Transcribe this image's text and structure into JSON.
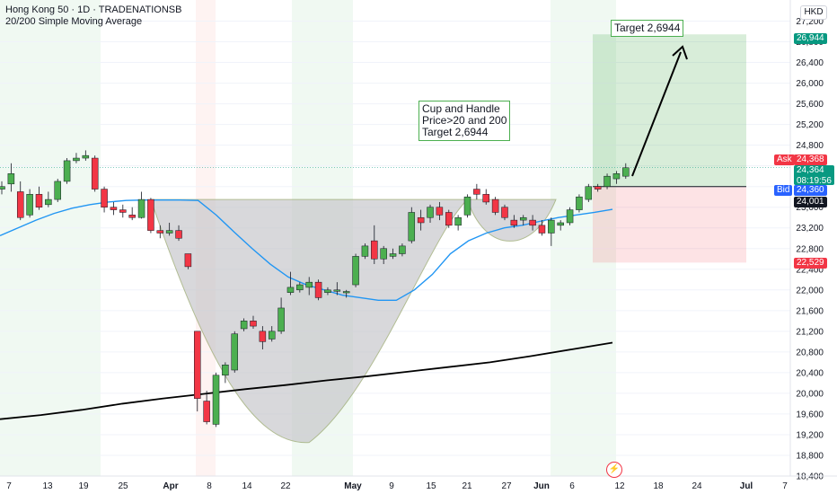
{
  "header": {
    "symbol_line": "Hong Kong 50 · 1D · TRADENATIONSB",
    "indicator_line": "20/200 Simple Moving Average"
  },
  "currency": "HKD",
  "annotations": {
    "cup_lines": [
      "Cup and Handle",
      "Price>20 and 200",
      "Target 2,6944"
    ],
    "target_label": "Target 2,6944"
  },
  "price_tags": {
    "target": {
      "text": "26,944",
      "color": "#089981"
    },
    "ask_label": "Ask",
    "ask": "24,368",
    "ask_color": "#f23645",
    "last": "24,364",
    "countdown": "08:19:56",
    "last_color": "#089981",
    "bid_label": "Bid",
    "bid": "24,360",
    "bid_color": "#2962ff",
    "entry": {
      "text": "24,001",
      "color": "#131722"
    },
    "stop": {
      "text": "22,529",
      "color": "#f23645"
    }
  },
  "colors": {
    "up": "#4caf50",
    "down": "#f23645",
    "ma20": "#2196f3",
    "ma200": "#000000",
    "cup_fill": "#c4c4c8"
  },
  "chart_data": {
    "type": "candlestick",
    "y_ticks": [
      18400,
      18800,
      19200,
      19600,
      20000,
      20400,
      20800,
      21200,
      21600,
      22000,
      22400,
      22800,
      23200,
      23600,
      24000,
      24400,
      24800,
      25200,
      25600,
      26000,
      26400,
      26800,
      27200
    ],
    "y_tick_labels": [
      "18,400",
      "18,800",
      "19,200",
      "19,600",
      "20,000",
      "20,400",
      "20,800",
      "21,200",
      "21,600",
      "22,000",
      "22,400",
      "22,800",
      "23,200",
      "23,600",
      "24,000",
      "24,400",
      "24,800",
      "25,200",
      "25,600",
      "26,000",
      "26,400",
      "26,800",
      "27,200"
    ],
    "ylim": [
      18400,
      27400
    ],
    "x_labels": [
      "7",
      "13",
      "19",
      "25",
      "Apr",
      "8",
      "14",
      "22",
      "May",
      "9",
      "15",
      "21",
      "27",
      "Jun",
      "6",
      "12",
      "18",
      "24",
      "Jul",
      "7"
    ],
    "candles": [
      {
        "o": 23950,
        "h": 24100,
        "l": 23850,
        "c": 24000
      },
      {
        "o": 24050,
        "h": 24450,
        "l": 23900,
        "c": 24250
      },
      {
        "o": 23900,
        "h": 24100,
        "l": 23350,
        "c": 23400
      },
      {
        "o": 23450,
        "h": 23950,
        "l": 23400,
        "c": 23850
      },
      {
        "o": 23850,
        "h": 24000,
        "l": 23550,
        "c": 23600
      },
      {
        "o": 23650,
        "h": 23900,
        "l": 23600,
        "c": 23750
      },
      {
        "o": 23750,
        "h": 24150,
        "l": 23700,
        "c": 24100
      },
      {
        "o": 24100,
        "h": 24550,
        "l": 24050,
        "c": 24500
      },
      {
        "o": 24500,
        "h": 24650,
        "l": 24450,
        "c": 24550
      },
      {
        "o": 24550,
        "h": 24700,
        "l": 24500,
        "c": 24600
      },
      {
        "o": 24550,
        "h": 24600,
        "l": 23900,
        "c": 23950
      },
      {
        "o": 23950,
        "h": 24000,
        "l": 23500,
        "c": 23600
      },
      {
        "o": 23600,
        "h": 23700,
        "l": 23450,
        "c": 23550
      },
      {
        "o": 23550,
        "h": 23650,
        "l": 23400,
        "c": 23500
      },
      {
        "o": 23450,
        "h": 23600,
        "l": 23350,
        "c": 23400
      },
      {
        "o": 23400,
        "h": 23900,
        "l": 23380,
        "c": 23750
      },
      {
        "o": 23750,
        "h": 23780,
        "l": 23100,
        "c": 23150
      },
      {
        "o": 23150,
        "h": 23250,
        "l": 23000,
        "c": 23100
      },
      {
        "o": 23100,
        "h": 23300,
        "l": 23050,
        "c": 23150
      },
      {
        "o": 23150,
        "h": 23250,
        "l": 22950,
        "c": 23000
      },
      {
        "o": 22700,
        "h": 22700,
        "l": 22400,
        "c": 22450
      },
      {
        "o": 21200,
        "h": 21200,
        "l": 19650,
        "c": 19900
      },
      {
        "o": 19850,
        "h": 20050,
        "l": 19400,
        "c": 19450
      },
      {
        "o": 19400,
        "h": 20400,
        "l": 19350,
        "c": 20350
      },
      {
        "o": 20350,
        "h": 20600,
        "l": 20200,
        "c": 20550
      },
      {
        "o": 20450,
        "h": 21200,
        "l": 20400,
        "c": 21150
      },
      {
        "o": 21250,
        "h": 21450,
        "l": 21200,
        "c": 21400
      },
      {
        "o": 21400,
        "h": 21500,
        "l": 21250,
        "c": 21300
      },
      {
        "o": 21200,
        "h": 21300,
        "l": 20850,
        "c": 21000
      },
      {
        "o": 21050,
        "h": 21300,
        "l": 21000,
        "c": 21200
      },
      {
        "o": 21200,
        "h": 21850,
        "l": 21150,
        "c": 21650
      },
      {
        "o": 21950,
        "h": 22350,
        "l": 21900,
        "c": 22050
      },
      {
        "o": 22000,
        "h": 22150,
        "l": 21950,
        "c": 22100
      },
      {
        "o": 22050,
        "h": 22250,
        "l": 21900,
        "c": 22150
      },
      {
        "o": 22150,
        "h": 22200,
        "l": 21800,
        "c": 21850
      },
      {
        "o": 21950,
        "h": 22050,
        "l": 21900,
        "c": 22000
      },
      {
        "o": 22000,
        "h": 22150,
        "l": 21900,
        "c": 22000
      },
      {
        "o": 21950,
        "h": 22000,
        "l": 21850,
        "c": 21970
      },
      {
        "o": 22100,
        "h": 22700,
        "l": 22050,
        "c": 22650
      },
      {
        "o": 22650,
        "h": 22900,
        "l": 22600,
        "c": 22850
      },
      {
        "o": 22950,
        "h": 23250,
        "l": 22500,
        "c": 22600
      },
      {
        "o": 22600,
        "h": 22850,
        "l": 22500,
        "c": 22800
      },
      {
        "o": 22650,
        "h": 22800,
        "l": 22600,
        "c": 22700
      },
      {
        "o": 22700,
        "h": 22900,
        "l": 22650,
        "c": 22850
      },
      {
        "o": 22950,
        "h": 23600,
        "l": 22900,
        "c": 23500
      },
      {
        "o": 23400,
        "h": 23550,
        "l": 23150,
        "c": 23300
      },
      {
        "o": 23400,
        "h": 23650,
        "l": 23300,
        "c": 23600
      },
      {
        "o": 23600,
        "h": 23700,
        "l": 23350,
        "c": 23450
      },
      {
        "o": 23500,
        "h": 23550,
        "l": 23200,
        "c": 23250
      },
      {
        "o": 23250,
        "h": 23450,
        "l": 23150,
        "c": 23400
      },
      {
        "o": 23450,
        "h": 23850,
        "l": 23400,
        "c": 23800
      },
      {
        "o": 23950,
        "h": 24050,
        "l": 23750,
        "c": 23850
      },
      {
        "o": 23850,
        "h": 23950,
        "l": 23650,
        "c": 23700
      },
      {
        "o": 23750,
        "h": 23800,
        "l": 23450,
        "c": 23500
      },
      {
        "o": 23600,
        "h": 23650,
        "l": 23350,
        "c": 23400
      },
      {
        "o": 23350,
        "h": 23450,
        "l": 23200,
        "c": 23250
      },
      {
        "o": 23350,
        "h": 23450,
        "l": 23250,
        "c": 23400
      },
      {
        "o": 23350,
        "h": 23450,
        "l": 23150,
        "c": 23250
      },
      {
        "o": 23250,
        "h": 23350,
        "l": 23050,
        "c": 23100
      },
      {
        "o": 23100,
        "h": 23400,
        "l": 22850,
        "c": 23350
      },
      {
        "o": 23250,
        "h": 23350,
        "l": 23150,
        "c": 23300
      },
      {
        "o": 23300,
        "h": 23600,
        "l": 23250,
        "c": 23550
      },
      {
        "o": 23550,
        "h": 23850,
        "l": 23500,
        "c": 23800
      },
      {
        "o": 23750,
        "h": 24050,
        "l": 23700,
        "c": 24000
      },
      {
        "o": 24000,
        "h": 24050,
        "l": 23900,
        "c": 23950
      },
      {
        "o": 24000,
        "h": 24250,
        "l": 23950,
        "c": 24200
      },
      {
        "o": 24150,
        "h": 24300,
        "l": 24050,
        "c": 24250
      },
      {
        "o": 24200,
        "h": 24450,
        "l": 24150,
        "c": 24364
      }
    ],
    "ma20": [
      23050,
      23200,
      23350,
      23480,
      23580,
      23650,
      23700,
      23730,
      23740,
      23740,
      23740,
      23730,
      23450,
      23120,
      22800,
      22500,
      22250,
      22100,
      22000,
      21900,
      21850,
      21800,
      21800,
      22000,
      22300,
      22700,
      22950,
      23100,
      23200,
      23250,
      23330,
      23400,
      23450,
      23500,
      23560
    ],
    "ma200": [
      19500,
      19580,
      19680,
      19800,
      19900,
      19990,
      20080,
      20160,
      20250,
      20330,
      20420,
      20510,
      20600,
      20720,
      20850,
      20980
    ],
    "trade_box": {
      "entry": 24000,
      "target": 26944,
      "stop": 22529
    },
    "cup": {
      "rim_price": 23750,
      "bottom_price": 19050,
      "handle_low": 22850
    }
  }
}
